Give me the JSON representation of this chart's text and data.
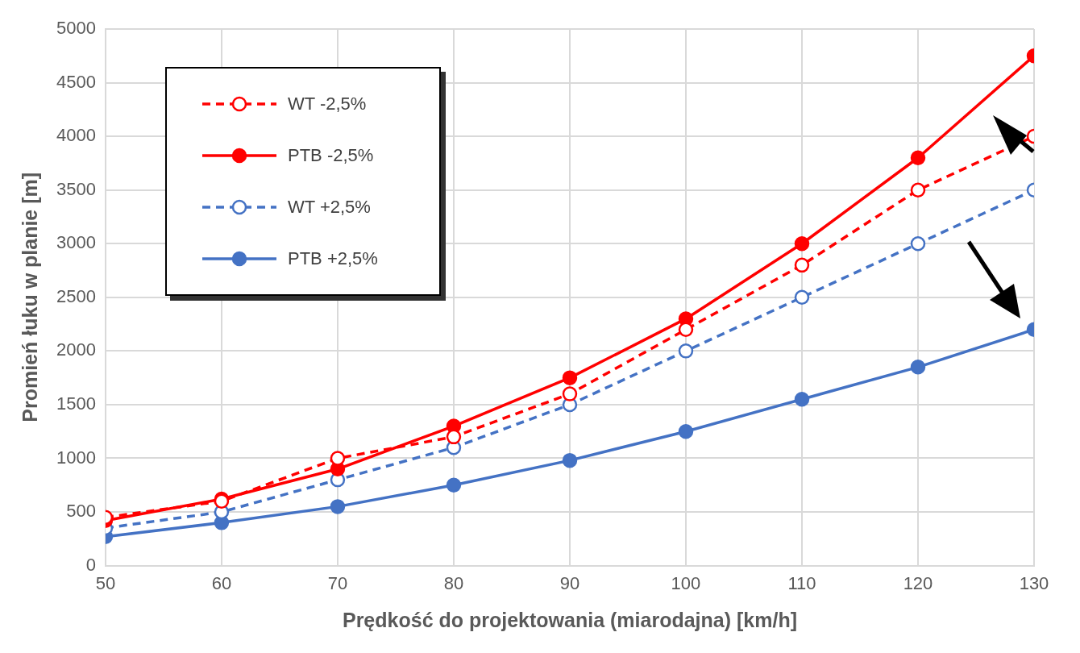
{
  "chart_data": {
    "type": "line",
    "xlabel": "Prędkość do projektowania (miarodajna) [km/h]",
    "ylabel": "Promień łuku w planie [m]",
    "x": [
      50,
      60,
      70,
      80,
      90,
      100,
      110,
      120,
      130
    ],
    "xlim": [
      50,
      130
    ],
    "xticks": [
      50,
      60,
      70,
      80,
      90,
      100,
      110,
      120,
      130
    ],
    "ylim": [
      0,
      5000
    ],
    "yticks": [
      0,
      500,
      1000,
      1500,
      2000,
      2500,
      3000,
      3500,
      4000,
      4500,
      5000
    ],
    "grid": true,
    "legend": "top left",
    "marker": "circle",
    "series": [
      {
        "name": "WT -2,5%",
        "color": "#ff0000",
        "line_style": "dashed",
        "values": [
          450,
          600,
          1000,
          1200,
          1600,
          2200,
          2800,
          3500,
          4000
        ]
      },
      {
        "name": "PTB -2,5%",
        "color": "#ff0000",
        "line_style": "solid",
        "values": [
          420,
          620,
          900,
          1300,
          1750,
          2300,
          3000,
          3800,
          4750
        ]
      },
      {
        "name": "WT +2,5%",
        "color": "#4472c4",
        "line_style": "dashed",
        "values": [
          350,
          500,
          800,
          1100,
          1500,
          2000,
          2500,
          3000,
          3500
        ]
      },
      {
        "name": "PTB +2,5%",
        "color": "#4472c4",
        "line_style": "solid",
        "values": [
          270,
          400,
          550,
          750,
          980,
          1250,
          1550,
          1850,
          2200
        ]
      }
    ]
  }
}
